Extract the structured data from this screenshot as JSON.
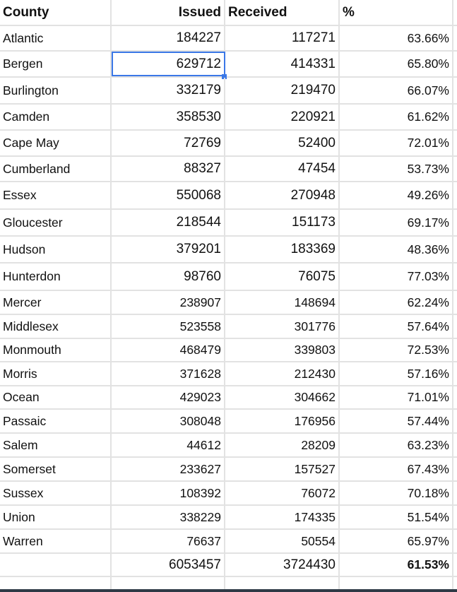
{
  "headers": [
    "County",
    "Issued",
    "Received",
    "%"
  ],
  "rows": [
    {
      "county": "Atlantic",
      "issued": "184227",
      "received": "117271",
      "pct": "63.66%"
    },
    {
      "county": "Bergen",
      "issued": "629712",
      "received": "414331",
      "pct": "65.80%"
    },
    {
      "county": "Burlington",
      "issued": "332179",
      "received": "219470",
      "pct": "66.07%"
    },
    {
      "county": "Camden",
      "issued": "358530",
      "received": "220921",
      "pct": "61.62%"
    },
    {
      "county": "Cape May",
      "issued": "72769",
      "received": "52400",
      "pct": "72.01%"
    },
    {
      "county": "Cumberland",
      "issued": "88327",
      "received": "47454",
      "pct": "53.73%"
    },
    {
      "county": "Essex",
      "issued": "550068",
      "received": "270948",
      "pct": "49.26%"
    },
    {
      "county": "Gloucester",
      "issued": "218544",
      "received": "151173",
      "pct": "69.17%"
    },
    {
      "county": "Hudson",
      "issued": "379201",
      "received": "183369",
      "pct": "48.36%"
    },
    {
      "county": "Hunterdon",
      "issued": "98760",
      "received": "76075",
      "pct": "77.03%"
    },
    {
      "county": "Mercer",
      "issued": "238907",
      "received": "148694",
      "pct": "62.24%"
    },
    {
      "county": "Middlesex",
      "issued": "523558",
      "received": "301776",
      "pct": "57.64%"
    },
    {
      "county": "Monmouth",
      "issued": "468479",
      "received": "339803",
      "pct": "72.53%"
    },
    {
      "county": "Morris",
      "issued": "371628",
      "received": "212430",
      "pct": "57.16%"
    },
    {
      "county": "Ocean",
      "issued": "429023",
      "received": "304662",
      "pct": "71.01%"
    },
    {
      "county": "Passaic",
      "issued": "308048",
      "received": "176956",
      "pct": "57.44%"
    },
    {
      "county": "Salem",
      "issued": "44612",
      "received": "28209",
      "pct": "63.23%"
    },
    {
      "county": "Somerset",
      "issued": "233627",
      "received": "157527",
      "pct": "67.43%"
    },
    {
      "county": "Sussex",
      "issued": "108392",
      "received": "76072",
      "pct": "70.18%"
    },
    {
      "county": "Union",
      "issued": "338229",
      "received": "174335",
      "pct": "51.54%"
    },
    {
      "county": "Warren",
      "issued": "76637",
      "received": "50554",
      "pct": "65.97%"
    }
  ],
  "totals": {
    "county": "",
    "issued": "6053457",
    "received": "3724430",
    "pct": "61.53%"
  },
  "selected_cell": "B3",
  "colors": {
    "selection": "#3b78e7",
    "gridline": "#e2e2e2"
  }
}
